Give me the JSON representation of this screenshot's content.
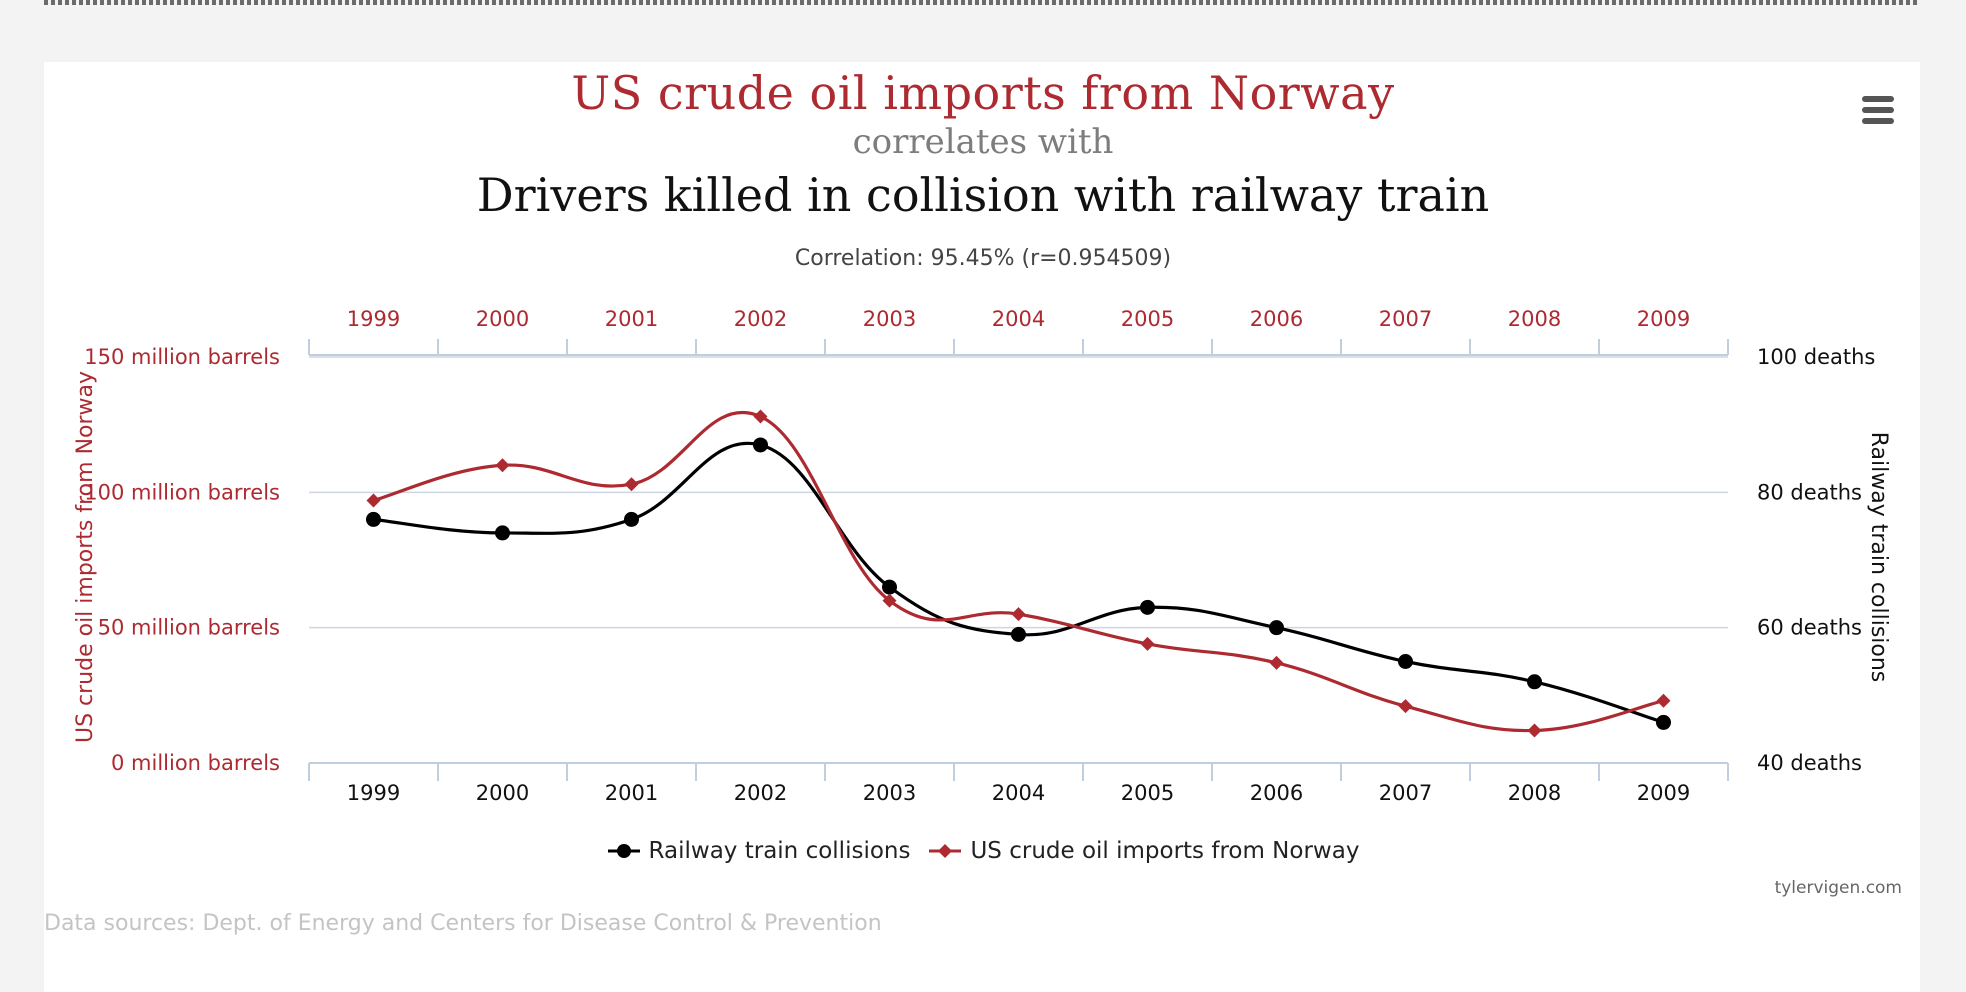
{
  "page": {
    "title_main": "US crude oil imports from Norway",
    "title_mid": "correlates with",
    "title_sub": "Drivers killed in collision with railway train",
    "correlation": "Correlation: 95.45% (r=0.954509)",
    "credit": "tylervigen.com",
    "sources": "Data sources: Dept. of Energy and Centers for Disease Control & Prevention",
    "menu_icon": "hamburger-menu-icon"
  },
  "colors": {
    "red": "#ad2a31",
    "black": "#000000",
    "grid": "#cdd6e2",
    "axis": "#c0cfe0"
  },
  "chart_data": {
    "type": "line",
    "categories": [
      "1999",
      "2000",
      "2001",
      "2002",
      "2003",
      "2004",
      "2005",
      "2006",
      "2007",
      "2008",
      "2009"
    ],
    "series": [
      {
        "name": "Railway train collisions",
        "axis": "right",
        "color": "#000000",
        "marker": "circle",
        "values": [
          76,
          74,
          76,
          87,
          66,
          59,
          63,
          60,
          55,
          52,
          46
        ]
      },
      {
        "name": "US crude oil imports from Norway",
        "axis": "left",
        "color": "#ad2a31",
        "marker": "diamond",
        "values": [
          97,
          110,
          103,
          128,
          60,
          55,
          44,
          37,
          21,
          12,
          23
        ]
      }
    ],
    "y_left": {
      "label": "US crude oil imports from Norway",
      "range": [
        0,
        150
      ],
      "ticks": [
        0,
        50,
        100,
        150
      ],
      "tick_labels": [
        "0 million barrels",
        "50 million barrels",
        "100 million barrels",
        "150 million barrels"
      ]
    },
    "y_right": {
      "label": "Railway train collisions",
      "range": [
        40,
        100
      ],
      "ticks": [
        40,
        60,
        80,
        100
      ],
      "tick_labels": [
        "40 deaths",
        "60 deaths",
        "80 deaths",
        "100 deaths"
      ]
    },
    "x_top_labels": true,
    "grid": true,
    "legend_position": "bottom-center"
  }
}
